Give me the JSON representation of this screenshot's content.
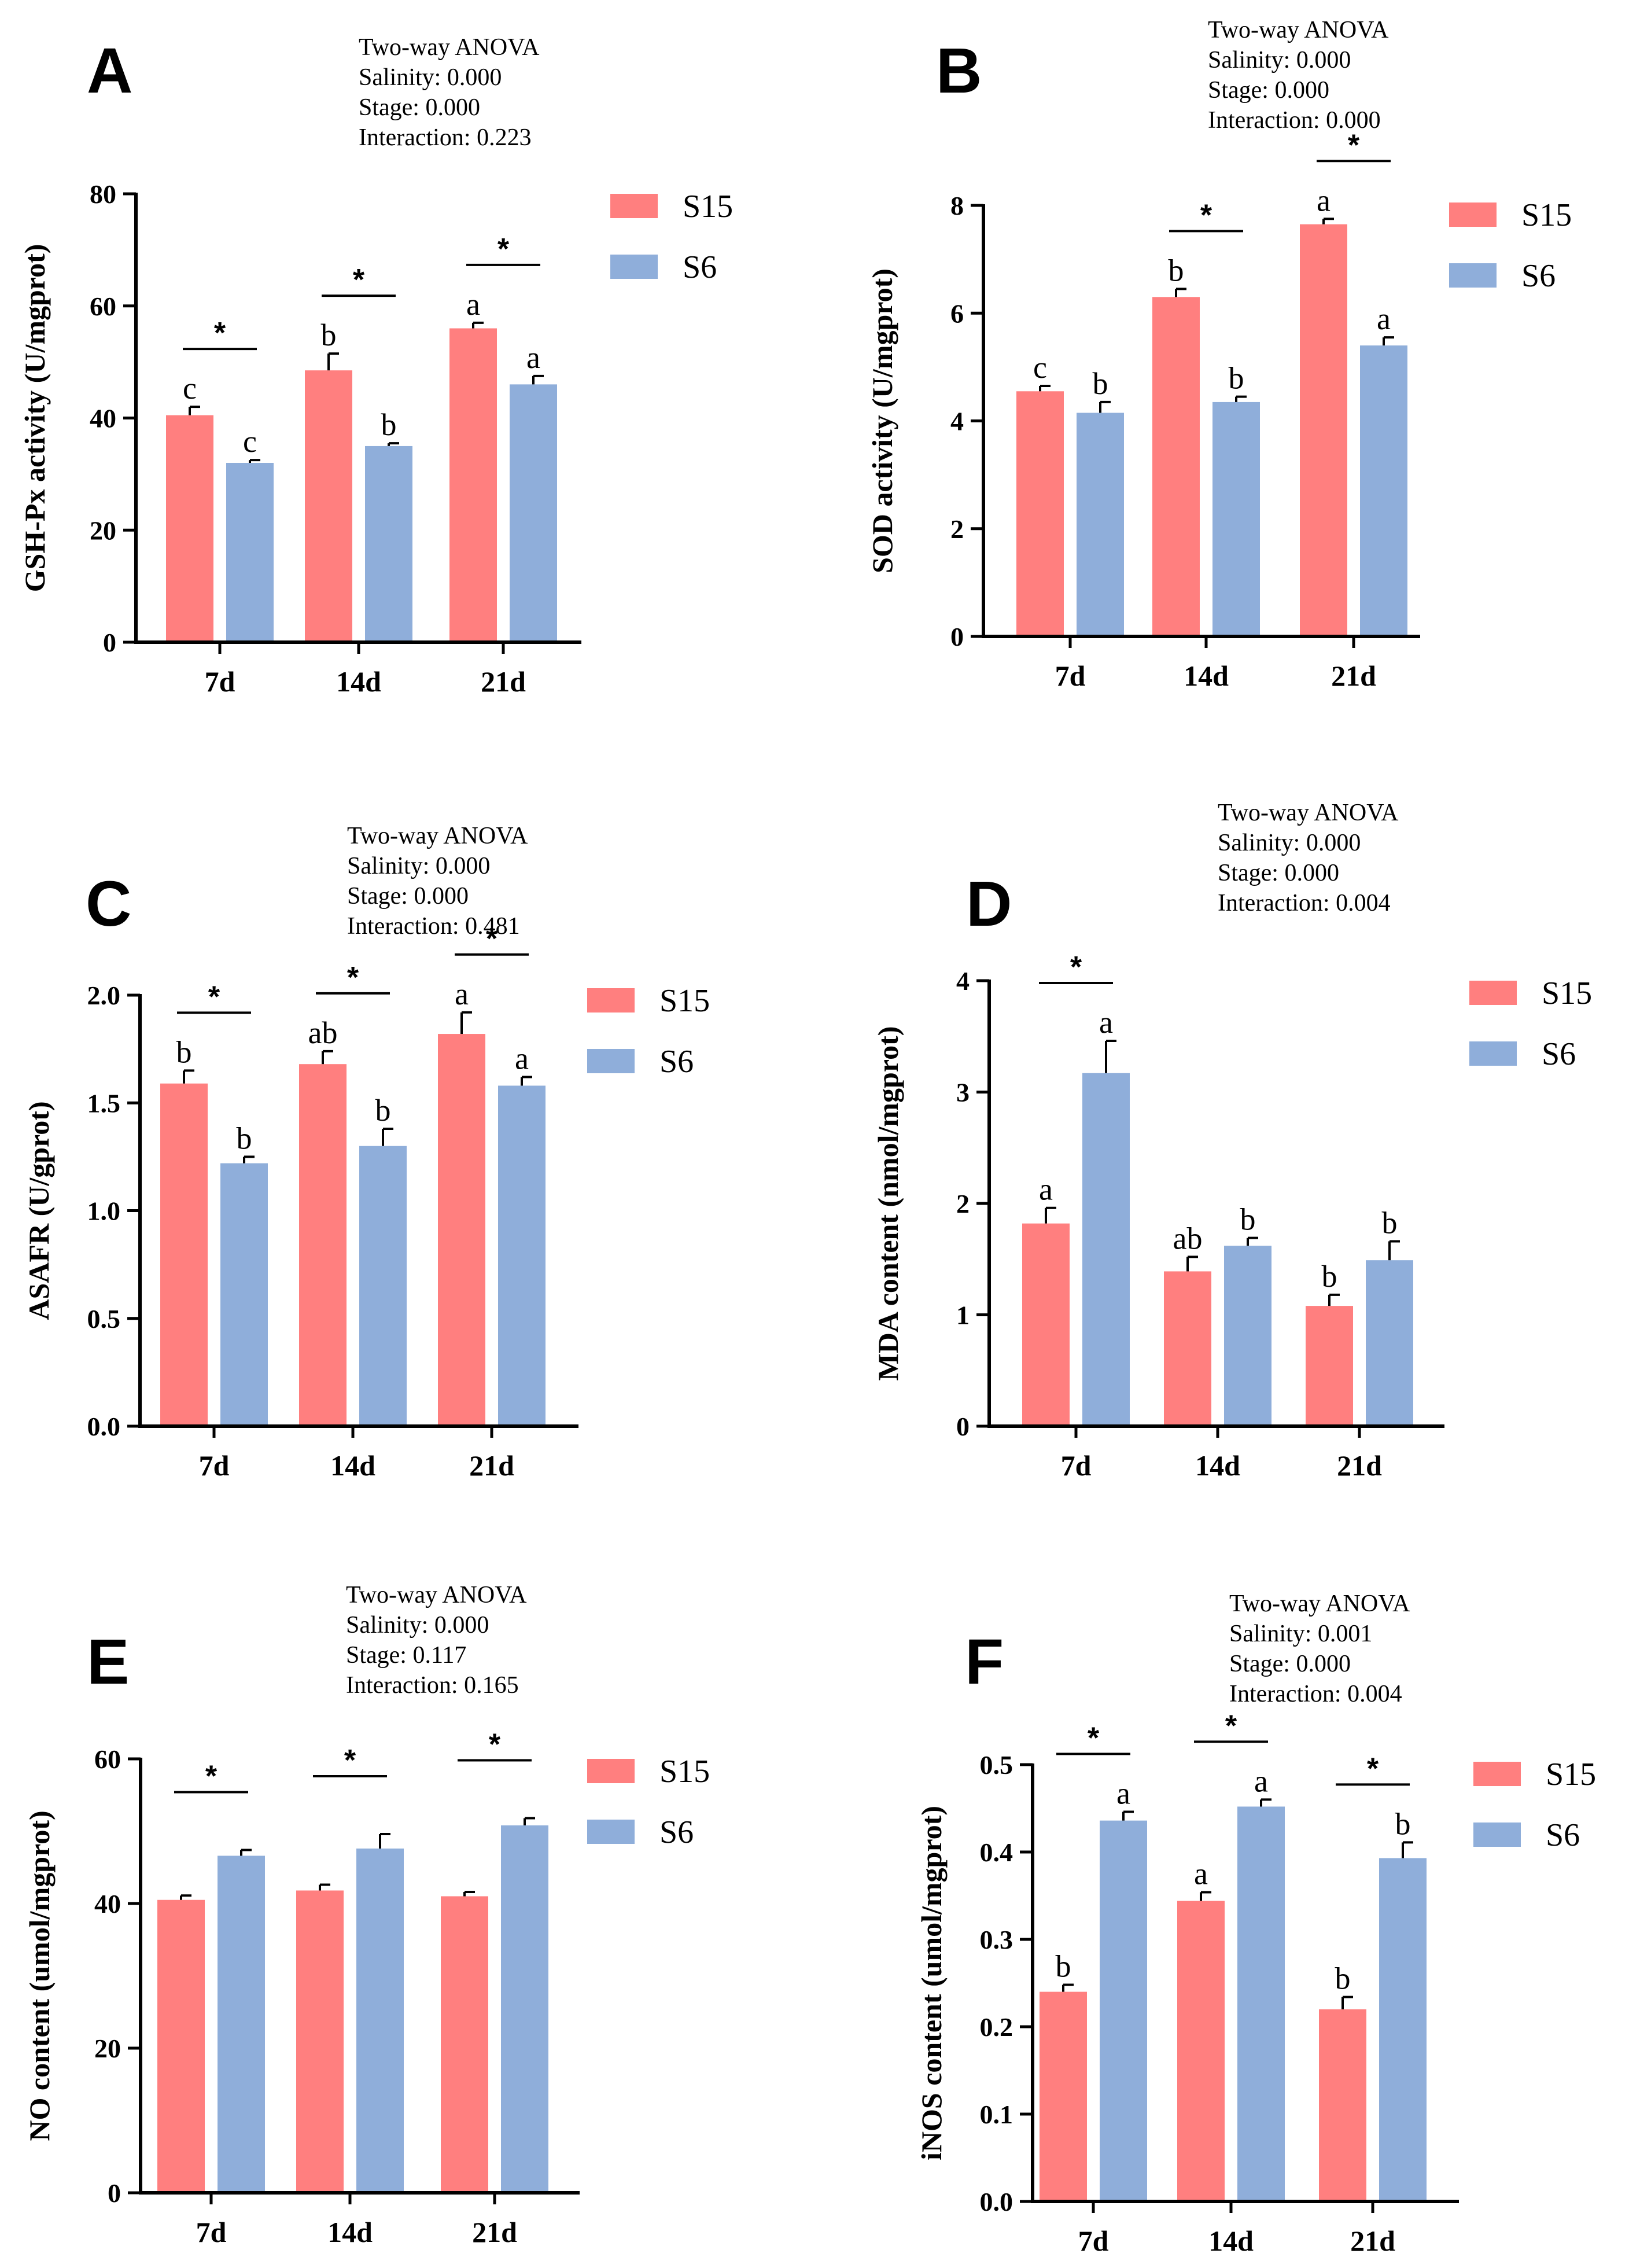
{
  "legend_names": [
    "S15",
    "S6"
  ],
  "colors": {
    "S15": "#FF7F7F",
    "S6": "#8FAEDA",
    "axis": "#000000"
  },
  "anova_title": "Two-way ANOVA",
  "chart_data": [
    {
      "type": "bar",
      "panel": "A",
      "anova": [
        "Salinity: 0.000",
        "Stage: 0.000",
        "Interaction: 0.223"
      ],
      "ylabel": "GSH-Px activity (U/mgprot)",
      "xlabel": "",
      "categories": [
        "7d",
        "14d",
        "21d"
      ],
      "ylim": [
        0,
        80
      ],
      "yticks": [
        0,
        20,
        40,
        60,
        80
      ],
      "ytick_labels": [
        "0",
        "20",
        "40",
        "60",
        "80"
      ],
      "series": [
        {
          "name": "S15",
          "values": [
            40.5,
            48.5,
            56
          ],
          "errors": [
            1.5,
            3,
            1
          ],
          "letters": [
            "c",
            "b",
            "a"
          ]
        },
        {
          "name": "S6",
          "values": [
            32,
            35,
            46
          ],
          "errors": [
            0.5,
            0.5,
            1.5
          ],
          "letters": [
            "c",
            "b",
            "a"
          ]
        }
      ],
      "significance": [
        "*",
        "*",
        "*"
      ]
    },
    {
      "type": "bar",
      "panel": "B",
      "anova": [
        "Salinity: 0.000",
        "Stage: 0.000",
        "Interaction: 0.000"
      ],
      "ylabel": "SOD activity (U/mgprot)",
      "xlabel": "",
      "categories": [
        "7d",
        "14d",
        "21d"
      ],
      "ylim": [
        0,
        8
      ],
      "yticks": [
        0,
        2,
        4,
        6,
        8
      ],
      "ytick_labels": [
        "0",
        "2",
        "4",
        "6",
        "8"
      ],
      "series": [
        {
          "name": "S15",
          "values": [
            4.55,
            6.3,
            7.65
          ],
          "errors": [
            0.1,
            0.15,
            0.1
          ],
          "letters": [
            "c",
            "b",
            "a"
          ]
        },
        {
          "name": "S6",
          "values": [
            4.15,
            4.35,
            5.4
          ],
          "errors": [
            0.2,
            0.1,
            0.15
          ],
          "letters": [
            "b",
            "b",
            "a"
          ]
        }
      ],
      "significance": [
        "",
        "*",
        "*"
      ]
    },
    {
      "type": "bar",
      "panel": "C",
      "anova": [
        "Salinity: 0.000",
        "Stage: 0.000",
        "Interaction: 0.481"
      ],
      "ylabel": "ASAFR (U/gprot)",
      "xlabel": "",
      "categories": [
        "7d",
        "14d",
        "21d"
      ],
      "ylim": [
        0,
        2
      ],
      "yticks": [
        0,
        0.5,
        1,
        1.5,
        2
      ],
      "ytick_labels": [
        "0.0",
        "0.5",
        "1.0",
        "1.5",
        "2.0"
      ],
      "series": [
        {
          "name": "S15",
          "values": [
            1.59,
            1.68,
            1.82
          ],
          "errors": [
            0.06,
            0.06,
            0.1
          ],
          "letters": [
            "b",
            "ab",
            "a"
          ]
        },
        {
          "name": "S6",
          "values": [
            1.22,
            1.3,
            1.58
          ],
          "errors": [
            0.03,
            0.08,
            0.04
          ],
          "letters": [
            "b",
            "b",
            "a"
          ]
        }
      ],
      "significance": [
        "*",
        "*",
        "*"
      ]
    },
    {
      "type": "bar",
      "panel": "D",
      "anova": [
        "Salinity: 0.000",
        "Stage: 0.000",
        "Interaction: 0.004"
      ],
      "ylabel": "MDA content (nmol/mgprot)",
      "xlabel": "",
      "categories": [
        "7d",
        "14d",
        "21d"
      ],
      "ylim": [
        0,
        4
      ],
      "yticks": [
        0,
        1,
        2,
        3,
        4
      ],
      "ytick_labels": [
        "0",
        "1",
        "2",
        "3",
        "4"
      ],
      "series": [
        {
          "name": "S15",
          "values": [
            1.82,
            1.39,
            1.08
          ],
          "errors": [
            0.14,
            0.13,
            0.1
          ],
          "letters": [
            "a",
            "ab",
            "b"
          ]
        },
        {
          "name": "S6",
          "values": [
            3.17,
            1.62,
            1.49
          ],
          "errors": [
            0.29,
            0.07,
            0.17
          ],
          "letters": [
            "a",
            "b",
            "b"
          ]
        }
      ],
      "significance": [
        "*",
        "",
        ""
      ]
    },
    {
      "type": "bar",
      "panel": "E",
      "anova": [
        "Salinity: 0.000",
        "Stage: 0.117",
        "Interaction: 0.165"
      ],
      "ylabel": "NO content (umol/mgprot)",
      "xlabel": "",
      "categories": [
        "7d",
        "14d",
        "21d"
      ],
      "ylim": [
        0,
        60
      ],
      "yticks": [
        0,
        20,
        40,
        60
      ],
      "ytick_labels": [
        "0",
        "20",
        "40",
        "60"
      ],
      "series": [
        {
          "name": "S15",
          "values": [
            40.5,
            41.8,
            41
          ],
          "errors": [
            0.6,
            0.8,
            0.6
          ],
          "letters": [
            "",
            "",
            ""
          ]
        },
        {
          "name": "S6",
          "values": [
            46.6,
            47.6,
            50.8
          ],
          "errors": [
            0.8,
            2.0,
            1.0
          ],
          "letters": [
            "",
            "",
            ""
          ]
        }
      ],
      "significance": [
        "*",
        "*",
        "*"
      ]
    },
    {
      "type": "bar",
      "panel": "F",
      "anova": [
        "Salinity: 0.001",
        "Stage: 0.000",
        "Interaction: 0.004"
      ],
      "ylabel": "iNOS content (umol/mgprot)",
      "xlabel": "",
      "categories": [
        "7d",
        "14d",
        "21d"
      ],
      "ylim": [
        0,
        0.5
      ],
      "yticks": [
        0,
        0.1,
        0.2,
        0.3,
        0.4,
        0.5
      ],
      "ytick_labels": [
        "0.0",
        "0.1",
        "0.2",
        "0.3",
        "0.4",
        "0.5"
      ],
      "series": [
        {
          "name": "S15",
          "values": [
            0.24,
            0.344,
            0.22
          ],
          "errors": [
            0.008,
            0.01,
            0.014
          ],
          "letters": [
            "b",
            "a",
            "b"
          ]
        },
        {
          "name": "S6",
          "values": [
            0.436,
            0.452,
            0.393
          ],
          "errors": [
            0.01,
            0.008,
            0.018
          ],
          "letters": [
            "a",
            "a",
            "b"
          ]
        }
      ],
      "significance": [
        "*",
        "*",
        "*"
      ]
    }
  ]
}
